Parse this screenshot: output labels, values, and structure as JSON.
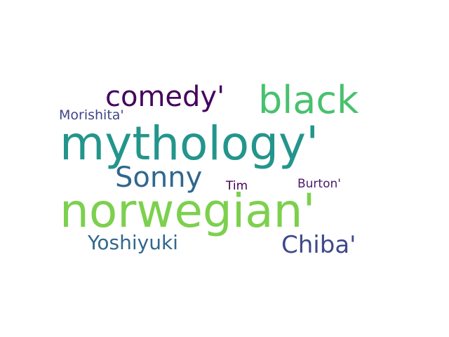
{
  "words": [
    {
      "text": "mythology'",
      "color": "#23958c",
      "size": 66
    },
    {
      "text": "norwegian'",
      "color": "#7dd04e",
      "size": 66
    },
    {
      "text": "black",
      "color": "#48c16e",
      "size": 54
    },
    {
      "text": "comedy'",
      "color": "#45035d",
      "size": 40
    },
    {
      "text": "Sonny",
      "color": "#30678e",
      "size": 40
    },
    {
      "text": "Chiba'",
      "color": "#3e4988",
      "size": 34
    },
    {
      "text": "Yoshiyuki",
      "color": "#31688e",
      "size": 28
    },
    {
      "text": "Morishita'",
      "color": "#414487",
      "size": 19
    },
    {
      "text": "Burton'",
      "color": "#481a6c",
      "size": 17
    },
    {
      "text": "Tim",
      "color": "#440154",
      "size": 17
    }
  ]
}
